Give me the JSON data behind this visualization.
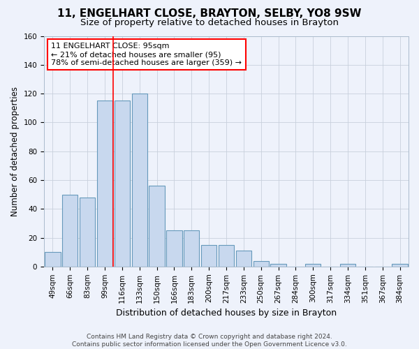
{
  "title": "11, ENGELHART CLOSE, BRAYTON, SELBY, YO8 9SW",
  "subtitle": "Size of property relative to detached houses in Brayton",
  "xlabel": "Distribution of detached houses by size in Brayton",
  "ylabel": "Number of detached properties",
  "categories": [
    "49sqm",
    "66sqm",
    "83sqm",
    "99sqm",
    "116sqm",
    "133sqm",
    "150sqm",
    "166sqm",
    "183sqm",
    "200sqm",
    "217sqm",
    "233sqm",
    "250sqm",
    "267sqm",
    "284sqm",
    "300sqm",
    "317sqm",
    "334sqm",
    "351sqm",
    "367sqm",
    "384sqm"
  ],
  "values": [
    10,
    50,
    48,
    115,
    115,
    120,
    56,
    25,
    25,
    15,
    15,
    11,
    4,
    2,
    0,
    2,
    0,
    2,
    0,
    0,
    2
  ],
  "bar_color": "#c8d8ee",
  "bar_edge_color": "#6699bb",
  "ylim": [
    0,
    160
  ],
  "yticks": [
    0,
    20,
    40,
    60,
    80,
    100,
    120,
    140,
    160
  ],
  "property_label": "11 ENGELHART CLOSE: 95sqm",
  "annotation_line1": "← 21% of detached houses are smaller (95)",
  "annotation_line2": "78% of semi-detached houses are larger (359) →",
  "vline_position": 3.5,
  "footer_line1": "Contains HM Land Registry data © Crown copyright and database right 2024.",
  "footer_line2": "Contains public sector information licensed under the Open Government Licence v3.0.",
  "background_color": "#eef2fb",
  "grid_color": "#c8d0dc",
  "title_fontsize": 11,
  "subtitle_fontsize": 9.5,
  "axis_label_fontsize": 8.5,
  "tick_fontsize": 7.5,
  "footer_fontsize": 6.5,
  "annotation_fontsize": 8
}
